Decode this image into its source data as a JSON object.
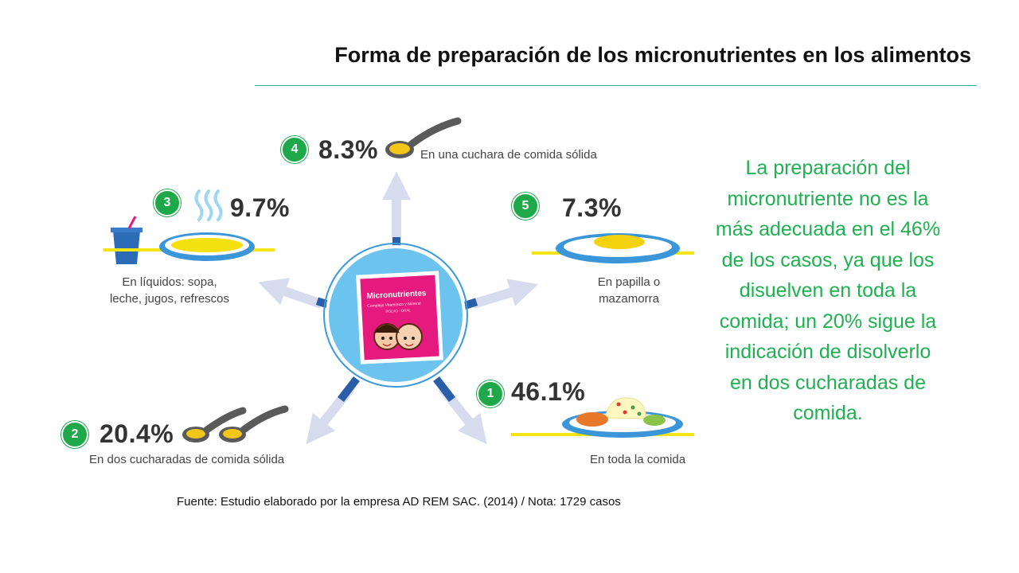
{
  "title": "Forma de preparación de los micronutrientes en los alimentos",
  "packet": {
    "brand": "Micronutrientes",
    "subtitle": "Complejo Vitamínico y Mineral",
    "form": "POLVO - ORAL"
  },
  "items": [
    {
      "number": "1",
      "percent": "46.1%",
      "caption": "En toda la comida"
    },
    {
      "number": "2",
      "percent": "20.4%",
      "caption": "En dos cucharadas de comida sólida"
    },
    {
      "number": "3",
      "percent": "9.7%",
      "caption_lines": [
        "En líquidos: sopa,",
        "leche, jugos, refrescos"
      ]
    },
    {
      "number": "4",
      "percent": "8.3%",
      "caption": "En una cuchara de comida sólida"
    },
    {
      "number": "5",
      "percent": "7.3%",
      "caption_lines": [
        "En papilla o",
        "mazamorra"
      ]
    }
  ],
  "side_text": "La preparación del micronutriente no es la más adecuada en el 46% de los casos, ya que los disuelven en toda la comida; un 20% sigue la indicación de disolverlo en dos cucharadas de comida.",
  "source": "Fuente: Estudio elaborado por la empresa AD REM SAC. (2014) / Nota: 1729 casos",
  "colors": {
    "accent_green": "#1fb051",
    "rule": "#2bb39a",
    "circle": "#6cc4ee",
    "arrow": "#d6dcee",
    "packet": "#e5197e"
  }
}
